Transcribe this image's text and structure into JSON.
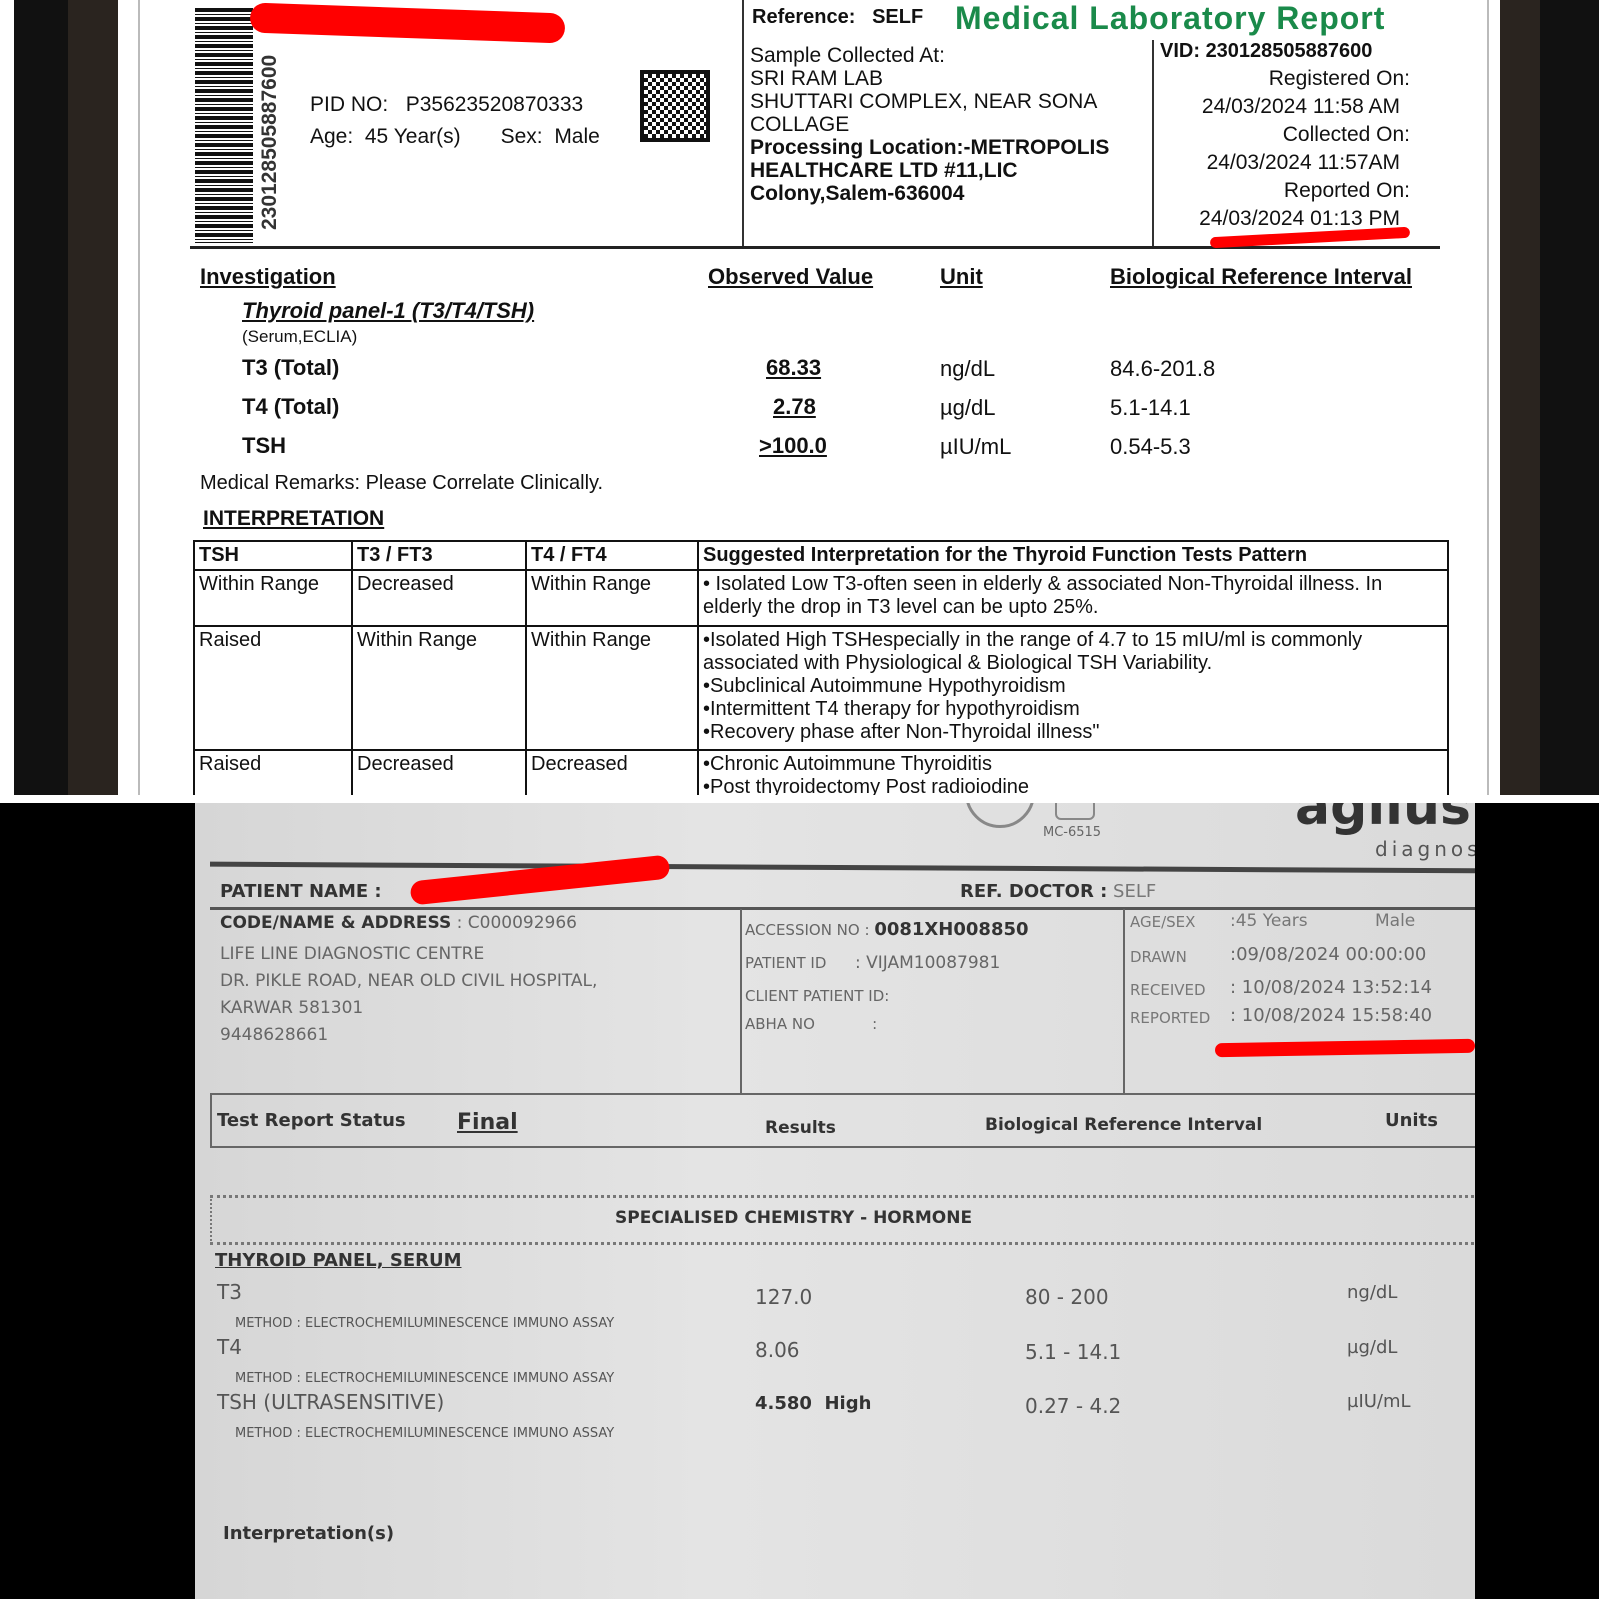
{
  "report1": {
    "barcode_number": "230128505887600",
    "pid_label": "PID NO:",
    "pid": "P35623520870333",
    "age_label": "Age:",
    "age": "45 Year(s)",
    "sex_label": "Sex:",
    "sex": "Male",
    "reference_label": "Reference:",
    "reference": "SELF",
    "title": "Medical Laboratory Report",
    "vid_label": "VID:",
    "vid": "230128505887600",
    "sample_collected_label": "Sample Collected At:",
    "sample_lines": [
      "SRI RAM LAB",
      "SHUTTARI COMPLEX, NEAR SONA",
      "COLLAGE"
    ],
    "processing_lines": [
      "Processing Location:-METROPOLIS",
      "HEALTHCARE LTD #11,LIC",
      "Colony,Salem-636004"
    ],
    "registered_label": "Registered On:",
    "registered": "24/03/2024 11:58 AM",
    "collected_label": "Collected On:",
    "collected": "24/03/2024 11:57AM",
    "reported_label": "Reported On:",
    "reported": "24/03/2024 01:13 PM",
    "headers": {
      "investigation": "Investigation",
      "observed": "Observed Value",
      "unit": "Unit",
      "ref": "Biological Reference Interval"
    },
    "panel_title": "Thyroid panel-1 (T3/T4/TSH)",
    "panel_sub": "(Serum,ECLIA)",
    "results": [
      {
        "name": "T3 (Total)",
        "value": "68.33",
        "unit": "ng/dL",
        "ref": "84.6-201.8"
      },
      {
        "name": "T4 (Total)",
        "value": "2.78",
        "unit": "µg/dL",
        "ref": "5.1-14.1"
      },
      {
        "name": "TSH",
        "value": ">100.0",
        "unit": "µIU/mL",
        "ref": "0.54-5.3"
      }
    ],
    "remarks": "Medical Remarks: Please Correlate Clinically.",
    "interpretation_title": "INTERPRETATION",
    "interp_headers": [
      "TSH",
      "T3 / FT3",
      "T4 / FT4",
      "Suggested Interpretation for the Thyroid Function Tests Pattern"
    ],
    "interp_rows": [
      [
        "Within Range",
        "Decreased",
        "Within Range",
        "• Isolated Low T3-often seen in elderly & associated Non-Thyroidal illness. In elderly the drop in T3 level can be upto 25%."
      ],
      [
        "Raised",
        "Within Range",
        "Within Range",
        "•Isolated High TSHespecially in the range of 4.7 to 15 mIU/ml  is commonly associated with Physiological & Biological TSH Variability.\n•Subclinical Autoimmune Hypothyroidism\n•Intermittent T4 therapy for hypothyroidism\n•Recovery phase after Non-Thyroidal illness\""
      ],
      [
        "Raised",
        "Decreased",
        "Decreased",
        "•Chronic Autoimmune Thyroiditis\n•Post thyroidectomy Post radioiodine"
      ]
    ]
  },
  "report2": {
    "logo_text": "agilus",
    "logo_sub": "diagnostics",
    "accreditation": "MC-6515",
    "patient_name_label": "PATIENT NAME :",
    "ref_doctor_label": "REF. DOCTOR :",
    "ref_doctor": "SELF",
    "code_label": "CODE/NAME & ADDRESS",
    "code": ": C000092966",
    "address_lines": [
      "LIFE LINE DIAGNOSTIC CENTRE",
      "DR. PIKLE ROAD, NEAR  OLD CIVIL HOSPITAL,",
      "KARWAR 581301",
      "9448628661"
    ],
    "accession_label": "ACCESSION NO :",
    "accession": "0081XH008850",
    "patient_id_label": "PATIENT ID",
    "patient_id": ": VIJAM10087981",
    "client_patient_id_label": "CLIENT PATIENT ID:",
    "abha_label": "ABHA NO",
    "abha": ":",
    "age_sex_label": "AGE/SEX",
    "age": ":45 Years",
    "sex": "Male",
    "drawn_label": "DRAWN",
    "drawn": ":09/08/2024 00:00:00",
    "received_label": "RECEIVED",
    "received": ": 10/08/2024 13:52:14",
    "reported_label": "REPORTED",
    "reported": ": 10/08/2024 15:58:40",
    "status_label": "Test Report Status",
    "status": "Final",
    "headers": {
      "results": "Results",
      "ref": "Biological Reference Interval",
      "units": "Units"
    },
    "section": "SPECIALISED CHEMISTRY - HORMONE",
    "panel_title": "THYROID PANEL, SERUM",
    "results": [
      {
        "name": "T3",
        "method": "METHOD : ELECTROCHEMILUMINESCENCE IMMUNO ASSAY",
        "value": "127.0",
        "ref": "80 - 200",
        "unit": "ng/dL"
      },
      {
        "name": "T4",
        "method": "METHOD : ELECTROCHEMILUMINESCENCE IMMUNO ASSAY",
        "value": "8.06",
        "ref": "5.1 - 14.1",
        "unit": "µg/dL"
      },
      {
        "name": "TSH (ULTRASENSITIVE)",
        "method": "METHOD : ELECTROCHEMILUMINESCENCE IMMUNO ASSAY",
        "value": "4.580  High",
        "ref": "0.27 - 4.2",
        "unit": "µIU/mL"
      }
    ],
    "interpretation_label": "Interpretation(s)"
  },
  "colors": {
    "title_green": "#1a8a4a",
    "redaction": "#ff0000"
  }
}
